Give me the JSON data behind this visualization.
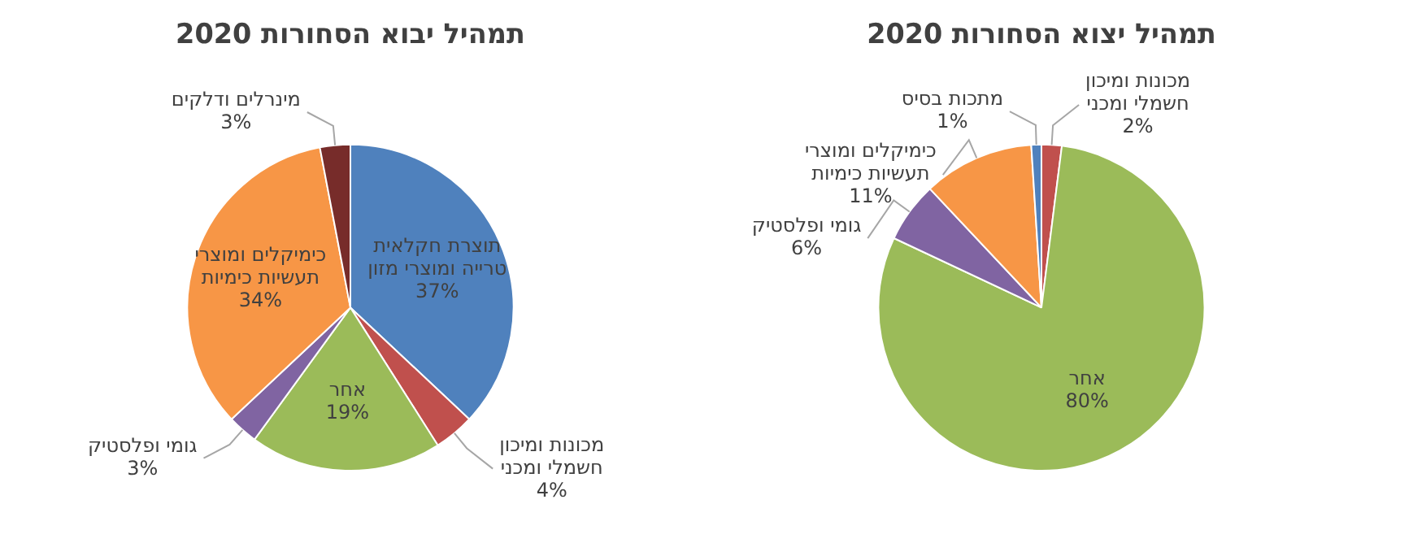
{
  "chart_data": [
    {
      "type": "pie",
      "title": "תמהיל יבוא הסחורות 2020",
      "categories": [
        "תוצרת חקלאית טרייה ומוצרי מזון",
        "מכונות ומיכון חשמלי ומכני",
        "אחר",
        "גומי ופלסטיק",
        "כימיקלים ומוצרי תעשיות כימיות",
        "מינרלים ודלקים"
      ],
      "values": [
        37,
        4,
        19,
        3,
        34,
        3
      ],
      "value_labels": [
        "37%",
        "4%",
        "19%",
        "3%",
        "34%",
        "3%"
      ],
      "colors": [
        "#4f81bd",
        "#c0504d",
        "#9bbb59",
        "#8064a2",
        "#f79646",
        "#772c2a"
      ],
      "legend": false
    },
    {
      "type": "pie",
      "title": "תמהיל יצוא הסחורות 2020",
      "categories": [
        "מכונות ומיכון חשמלי ומכני",
        "אחר",
        "גומי ופלסטיק",
        "כימיקלים ומוצרי תעשיות כימיות",
        "מתכות בסיס"
      ],
      "values": [
        2,
        80,
        6,
        11,
        1
      ],
      "value_labels": [
        "2%",
        "80%",
        "6%",
        "11%",
        "1%"
      ],
      "colors": [
        "#c0504d",
        "#9bbb59",
        "#8064a2",
        "#f79646",
        "#4f81bd"
      ],
      "legend": false
    }
  ]
}
